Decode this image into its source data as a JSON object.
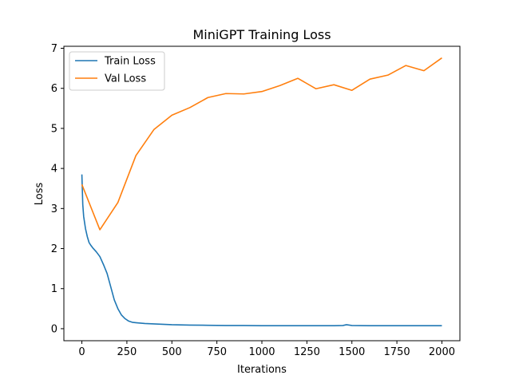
{
  "chart_data": {
    "type": "line",
    "title": "MiniGPT Training Loss",
    "xlabel": "Iterations",
    "ylabel": "Loss",
    "xlim": [
      -100,
      2100
    ],
    "ylim": [
      -0.3,
      7.05
    ],
    "xticks": [
      0,
      250,
      500,
      750,
      1000,
      1250,
      1500,
      1750,
      2000
    ],
    "yticks": [
      0,
      1,
      2,
      3,
      4,
      5,
      6,
      7
    ],
    "grid": false,
    "legend": "top-left",
    "series": [
      {
        "name": "Train Loss",
        "color": "#1f77b4",
        "x": [
          0,
          5,
          10,
          20,
          30,
          40,
          50,
          60,
          80,
          100,
          120,
          140,
          160,
          180,
          200,
          220,
          240,
          260,
          280,
          300,
          350,
          400,
          450,
          500,
          600,
          700,
          800,
          900,
          1000,
          1100,
          1200,
          1300,
          1400,
          1450,
          1470,
          1500,
          1600,
          1700,
          1800,
          1900,
          2000
        ],
        "y": [
          3.85,
          3.1,
          2.8,
          2.5,
          2.3,
          2.15,
          2.08,
          2.02,
          1.92,
          1.8,
          1.6,
          1.38,
          1.05,
          0.72,
          0.5,
          0.34,
          0.25,
          0.19,
          0.16,
          0.15,
          0.13,
          0.12,
          0.11,
          0.1,
          0.09,
          0.085,
          0.08,
          0.08,
          0.075,
          0.075,
          0.075,
          0.075,
          0.075,
          0.08,
          0.1,
          0.08,
          0.075,
          0.075,
          0.075,
          0.075,
          0.075
        ]
      },
      {
        "name": "Val Loss",
        "color": "#ff7f0e",
        "x": [
          0,
          100,
          200,
          300,
          400,
          500,
          600,
          700,
          800,
          900,
          1000,
          1100,
          1200,
          1300,
          1400,
          1500,
          1600,
          1700,
          1800,
          1900,
          2000
        ],
        "y": [
          3.6,
          2.47,
          3.15,
          4.32,
          4.97,
          5.33,
          5.52,
          5.77,
          5.87,
          5.86,
          5.92,
          6.07,
          6.25,
          5.99,
          6.09,
          5.95,
          6.23,
          6.33,
          6.57,
          6.44,
          6.76
        ]
      }
    ]
  }
}
